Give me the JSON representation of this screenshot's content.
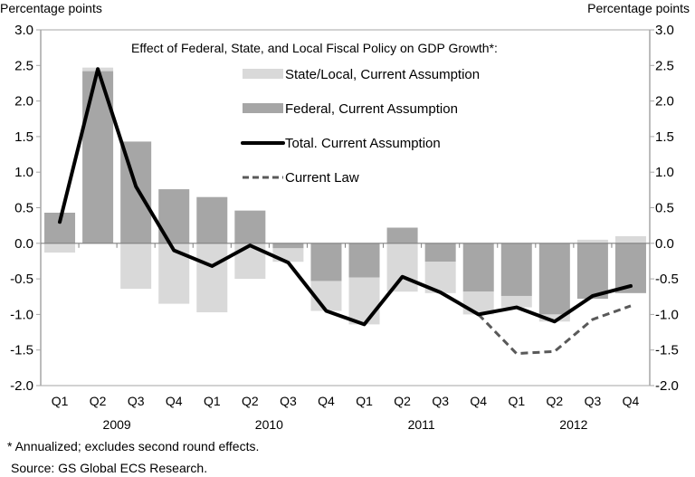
{
  "chart_data": {
    "type": "bar",
    "title": "Effect of Federal, State, and Local Fiscal Policy on GDP Growth*:",
    "ylabel_left": "Percentage points",
    "ylabel_right": "Percentage points",
    "ylim": [
      -2.0,
      3.0
    ],
    "yticks": [
      "3.0",
      "2.5",
      "2.0",
      "1.5",
      "1.0",
      "0.5",
      "0.0",
      "-0.5",
      "-1.0",
      "-1.5",
      "-2.0"
    ],
    "categories": [
      "Q1",
      "Q2",
      "Q3",
      "Q4",
      "Q1",
      "Q2",
      "Q3",
      "Q4",
      "Q1",
      "Q2",
      "Q3",
      "Q4",
      "Q1",
      "Q2",
      "Q3",
      "Q4"
    ],
    "years": [
      "2009",
      "2010",
      "2011",
      "2012"
    ],
    "grid": false,
    "legend_position": "top-center",
    "series": [
      {
        "name": "State/Local, Current Assumption",
        "kind": "stacked-bar",
        "color": "#d9d9d9",
        "values": [
          -0.13,
          0.05,
          -0.64,
          -0.85,
          -0.97,
          -0.5,
          -0.19,
          -0.42,
          -0.66,
          -0.68,
          -0.44,
          -0.32,
          -0.16,
          -0.1,
          0.05,
          0.1
        ]
      },
      {
        "name": "Federal, Current Assumption",
        "kind": "stacked-bar",
        "color": "#a6a6a6",
        "values": [
          0.43,
          2.42,
          1.43,
          0.76,
          0.65,
          0.46,
          -0.07,
          -0.53,
          -0.48,
          0.22,
          -0.26,
          -0.68,
          -0.74,
          -1.0,
          -0.78,
          -0.7
        ]
      },
      {
        "name": "Total. Current Assumption",
        "kind": "line",
        "color": "#000000",
        "values": [
          0.3,
          2.45,
          0.8,
          -0.1,
          -0.32,
          -0.03,
          -0.27,
          -0.95,
          -1.14,
          -0.47,
          -0.69,
          -1.0,
          -0.9,
          -1.1,
          -0.74,
          -0.6
        ]
      },
      {
        "name": "Current Law",
        "kind": "dashed-line",
        "color": "#595959",
        "values": [
          null,
          null,
          null,
          null,
          null,
          null,
          null,
          null,
          null,
          null,
          null,
          -1.0,
          -1.55,
          -1.52,
          -1.07,
          -0.88
        ]
      }
    ]
  },
  "footnote": "* Annualized; excludes second round effects.",
  "source": "Source: GS Global ECS Research."
}
